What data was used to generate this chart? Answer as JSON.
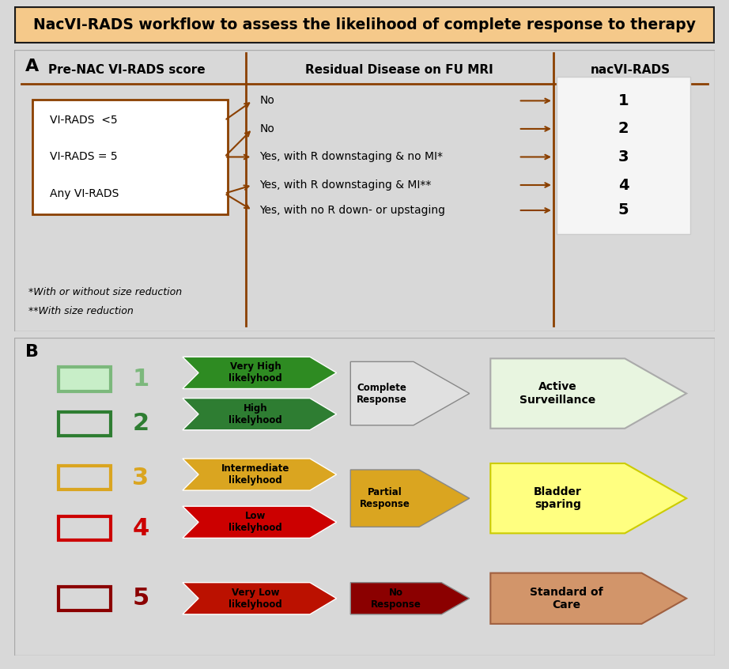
{
  "title": "NacVI-RADS workflow to assess the likelihood of complete response to therapy",
  "title_bg": "#F5C98A",
  "title_border": "#1A1A1A",
  "panel_bg": "#D8D8D8",
  "section_a_label": "A",
  "section_b_label": "B",
  "col_headers": [
    "Pre-NAC VI-RADS score",
    "Residual Disease on FU MRI",
    "nacVI-RADS"
  ],
  "header_line_color": "#8B4000",
  "pre_nac_labels": [
    "VI-RADS  <5",
    "VI-RADS = 5",
    "Any VI-RADS"
  ],
  "residual_labels": [
    "No",
    "No",
    "Yes, with R downstaging & no MI*",
    "Yes, with R downstaging & MI**",
    "Yes, with no R down- or upstaging"
  ],
  "nac_scores": [
    "1",
    "2",
    "3",
    "4",
    "5"
  ],
  "footnote1": "*With or without size reduction",
  "footnote2": "**With size reduction",
  "arrow_color": "#8B4000",
  "b_items": [
    {
      "score": "1",
      "sq_fill": "#C8EEC8",
      "sq_border": "#7CB87C",
      "num_color": "#7CB87C"
    },
    {
      "score": "2",
      "sq_fill": "none",
      "sq_border": "#2E7D32",
      "num_color": "#2E7D32"
    },
    {
      "score": "3",
      "sq_fill": "none",
      "sq_border": "#DAA520",
      "num_color": "#DAA520"
    },
    {
      "score": "4",
      "sq_fill": "none",
      "sq_border": "#CC0000",
      "num_color": "#CC0000"
    },
    {
      "score": "5",
      "sq_fill": "none",
      "sq_border": "#8B0000",
      "num_color": "#8B0000"
    }
  ],
  "likelihood_items": [
    {
      "text": "Very High\nlikelyhood",
      "color": "#2E8B22"
    },
    {
      "text": "High\nlikelyhood",
      "color": "#2E7D32"
    },
    {
      "text": "Intermediate\nlikelyhood",
      "color": "#DAA520"
    },
    {
      "text": "Low\nlikelyhood",
      "color": "#CC0000"
    },
    {
      "text": "Very Low\nlikelyhood",
      "color": "#BB1100"
    }
  ],
  "response_items": [
    {
      "text": "Complete\nResponse",
      "color": "#E0E0E0",
      "text_color": "#000000"
    },
    {
      "text": "Partial\nResponse",
      "color": "#DAA520",
      "text_color": "#000000"
    },
    {
      "text": "No\nResponse",
      "color": "#8B0000",
      "text_color": "#000000"
    }
  ],
  "outcome_items": [
    {
      "text": "Active\nSurveillance",
      "color": "#E8F5E0",
      "border": "#AAAAAA",
      "text_color": "#000000"
    },
    {
      "text": "Bladder\nsparing",
      "color": "#FFFF80",
      "border": "#CCCC00",
      "text_color": "#000000"
    },
    {
      "text": "Standard of\nCare",
      "color": "#D2956A",
      "border": "#A06040",
      "text_color": "#000000"
    }
  ]
}
